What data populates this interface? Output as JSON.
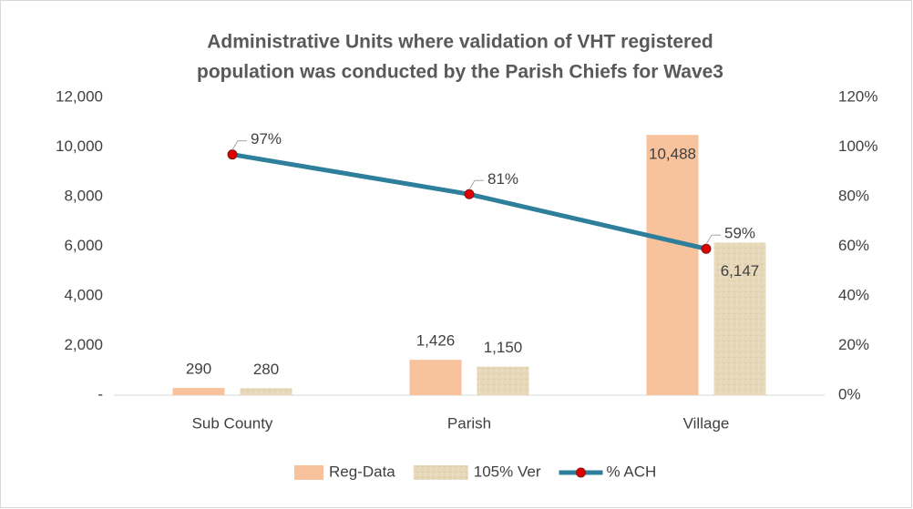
{
  "chart_data": {
    "type": "bar-line",
    "title": [
      "Administrative Units where validation of VHT registered",
      "population was conducted by the Parish Chiefs for  Wave3"
    ],
    "categories": [
      "Sub County",
      "Parish",
      "Village"
    ],
    "series": [
      {
        "name": "Reg-Data",
        "type": "bar",
        "color": "#f8c29c",
        "values": [
          290,
          1426,
          10488
        ],
        "value_labels": [
          "290",
          "1,426",
          "10,488"
        ]
      },
      {
        "name": "105% Ver",
        "type": "bar",
        "color": "#e6d8b8",
        "values": [
          280,
          1150,
          6147
        ],
        "value_labels": [
          "280",
          "1,150",
          "6,147"
        ]
      },
      {
        "name": "% ACH",
        "type": "line",
        "axis": "y2",
        "color": "#2e7f9b",
        "marker_color": "#e00000",
        "values": [
          97,
          81,
          59
        ],
        "value_labels": [
          "97%",
          "81%",
          "59%"
        ]
      }
    ],
    "ylim": [
      0,
      12000
    ],
    "yticks": [
      {
        "value": 0,
        "label": "-"
      },
      {
        "value": 2000,
        "label": "2,000"
      },
      {
        "value": 4000,
        "label": "4,000"
      },
      {
        "value": 6000,
        "label": "6,000"
      },
      {
        "value": 8000,
        "label": "8,000"
      },
      {
        "value": 10000,
        "label": "10,000"
      },
      {
        "value": 12000,
        "label": "12,000"
      }
    ],
    "y2lim": [
      0,
      120
    ],
    "y2ticks": [
      {
        "value": 0,
        "label": "0%"
      },
      {
        "value": 20,
        "label": "20%"
      },
      {
        "value": 40,
        "label": "40%"
      },
      {
        "value": 60,
        "label": "60%"
      },
      {
        "value": 80,
        "label": "80%"
      },
      {
        "value": 100,
        "label": "100%"
      },
      {
        "value": 120,
        "label": "120%"
      }
    ],
    "grid": false,
    "legend": "bottom"
  }
}
